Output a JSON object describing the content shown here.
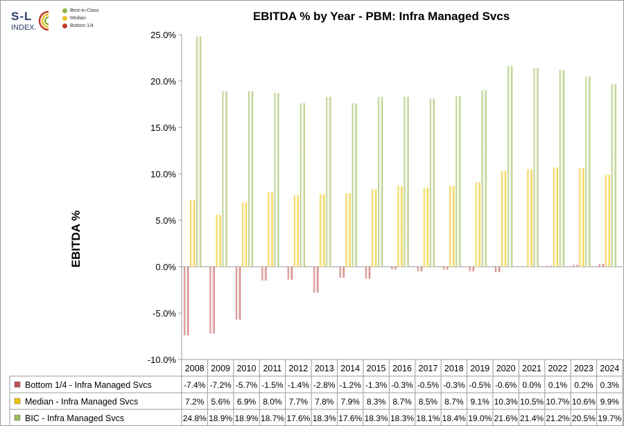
{
  "logo": {
    "line1": "S-L",
    "line2": "INDEX.",
    "legend": [
      {
        "label": "Best-in-Class",
        "color": "#8cb440"
      },
      {
        "label": "Median",
        "color": "#f0c020"
      },
      {
        "label": "Bottom 1/4",
        "color": "#c0392b"
      }
    ]
  },
  "chart_data": {
    "type": "bar",
    "title": "EBITDA % by Year - PBM: Infra Managed Svcs",
    "ylabel": "EBITDA %",
    "xlabel": "",
    "ylim": [
      -10,
      25
    ],
    "yticks": [
      "25.0%",
      "20.0%",
      "15.0%",
      "10.0%",
      "5.0%",
      "0.0%",
      "-5.0%",
      "-10.0%"
    ],
    "categories": [
      "2008",
      "2009",
      "2010",
      "2011",
      "2012",
      "2013",
      "2014",
      "2015",
      "2016",
      "2017",
      "2018",
      "2019",
      "2020",
      "2021",
      "2022",
      "2023",
      "2024"
    ],
    "series": [
      {
        "name": "Bottom 1/4 - Infra Managed Svcs",
        "color": "#c0504d",
        "values": [
          -7.4,
          -7.2,
          -5.7,
          -1.5,
          -1.4,
          -2.8,
          -1.2,
          -1.3,
          -0.3,
          -0.5,
          -0.3,
          -0.5,
          -0.6,
          0.0,
          0.1,
          0.2,
          0.3
        ],
        "labels": [
          "-7.4%",
          "-7.2%",
          "-5.7%",
          "-1.5%",
          "-1.4%",
          "-2.8%",
          "-1.2%",
          "-1.3%",
          "-0.3%",
          "-0.5%",
          "-0.3%",
          "-0.5%",
          "-0.6%",
          "0.0%",
          "0.1%",
          "0.2%",
          "0.3%"
        ]
      },
      {
        "name": "Median - Infra Managed Svcs",
        "color": "#f2c200",
        "values": [
          7.2,
          5.6,
          6.9,
          8.0,
          7.7,
          7.8,
          7.9,
          8.3,
          8.7,
          8.5,
          8.7,
          9.1,
          10.3,
          10.5,
          10.7,
          10.6,
          9.9
        ],
        "labels": [
          "7.2%",
          "5.6%",
          "6.9%",
          "8.0%",
          "7.7%",
          "7.8%",
          "7.9%",
          "8.3%",
          "8.7%",
          "8.5%",
          "8.7%",
          "9.1%",
          "10.3%",
          "10.5%",
          "10.7%",
          "10.6%",
          "9.9%"
        ]
      },
      {
        "name": "BIC - Infra Managed Svcs",
        "color": "#9bbb59",
        "values": [
          24.8,
          18.9,
          18.9,
          18.7,
          17.6,
          18.3,
          17.6,
          18.3,
          18.3,
          18.1,
          18.4,
          19.0,
          21.6,
          21.4,
          21.2,
          20.5,
          19.7
        ],
        "labels": [
          "24.8%",
          "18.9%",
          "18.9%",
          "18.7%",
          "17.6%",
          "18.3%",
          "17.6%",
          "18.3%",
          "18.3%",
          "18.1%",
          "18.4%",
          "19.0%",
          "21.6%",
          "21.4%",
          "21.2%",
          "20.5%",
          "19.7%"
        ]
      }
    ],
    "grid": false,
    "legend": "data-table"
  }
}
